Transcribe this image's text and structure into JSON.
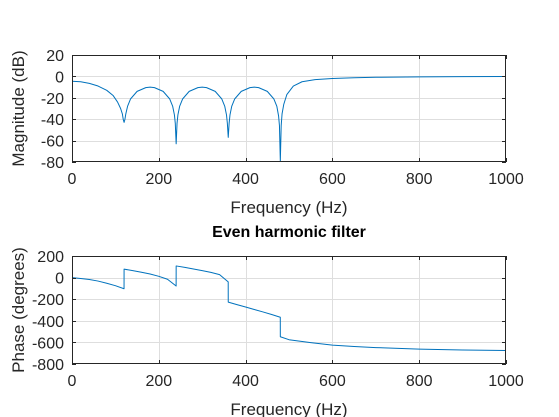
{
  "colors": {
    "series": "#0072bd",
    "axis": "#262626",
    "grid": "#dedede"
  },
  "chart_data": [
    {
      "type": "line",
      "title": "",
      "xlabel": "Frequency (Hz)",
      "ylabel": "Magnitude (dB)",
      "xlim": [
        0,
        1000
      ],
      "ylim": [
        -80,
        20
      ],
      "xticks": [
        0,
        200,
        400,
        600,
        800,
        1000
      ],
      "yticks": [
        -80,
        -60,
        -40,
        -20,
        0,
        20
      ],
      "xtick_labels": [
        "0",
        "200",
        "400",
        "600",
        "800",
        "1000"
      ],
      "ytick_labels": [
        "-80",
        "-60",
        "-40",
        "-20",
        "0",
        "20"
      ],
      "grid": true,
      "series": [
        {
          "x": [
            0,
            20,
            40,
            60,
            80,
            95,
            105,
            112,
            116,
            118,
            120,
            122,
            124,
            128,
            135,
            150,
            170,
            180,
            190,
            210,
            225,
            232,
            236,
            238,
            240,
            242,
            244,
            248,
            255,
            270,
            290,
            300,
            310,
            330,
            345,
            352,
            356,
            358,
            360,
            362,
            364,
            368,
            375,
            390,
            410,
            420,
            430,
            450,
            465,
            472,
            476,
            478,
            480,
            482,
            484,
            488,
            495,
            510,
            530,
            560,
            600,
            650,
            700,
            800,
            900,
            1000
          ],
          "y": [
            -4.5,
            -5,
            -6.5,
            -9,
            -13,
            -18,
            -24,
            -30,
            -35,
            -40,
            -43,
            -40,
            -35,
            -28,
            -21,
            -14,
            -10.5,
            -10,
            -10.5,
            -14,
            -21,
            -28,
            -36,
            -44,
            -63,
            -44,
            -36,
            -28,
            -21,
            -14,
            -10.5,
            -10,
            -10.5,
            -14,
            -21,
            -28,
            -36,
            -44,
            -57,
            -44,
            -36,
            -28,
            -21,
            -14,
            -10.5,
            -10,
            -10.5,
            -14,
            -21,
            -28,
            -37,
            -46,
            -79,
            -46,
            -35,
            -26,
            -17,
            -9,
            -5,
            -3,
            -2,
            -1.3,
            -0.8,
            -0.4,
            -0.2,
            -0.1
          ]
        }
      ]
    },
    {
      "type": "line",
      "title": "Even harmonic filter",
      "xlabel": "Frequency (Hz)",
      "ylabel": "Phase (degrees)",
      "xlim": [
        0,
        1000
      ],
      "ylim": [
        -800,
        200
      ],
      "xticks": [
        0,
        200,
        400,
        600,
        800,
        1000
      ],
      "yticks": [
        -800,
        -600,
        -400,
        -200,
        0,
        200
      ],
      "xtick_labels": [
        "0",
        "200",
        "400",
        "600",
        "800",
        "1000"
      ],
      "ytick_labels": [
        "-800",
        "-600",
        "-400",
        "-200",
        "0",
        "200"
      ],
      "grid": true,
      "series": [
        {
          "x": [
            0,
            20,
            40,
            60,
            80,
            100,
            119.9,
            120,
            140,
            160,
            180,
            200,
            220,
            239.9,
            240,
            260,
            280,
            300,
            320,
            340,
            359.9,
            360,
            380,
            400,
            420,
            440,
            460,
            479.9,
            480,
            500,
            550,
            600,
            650,
            700,
            800,
            900,
            1000
          ],
          "y": [
            0,
            -8,
            -18,
            -32,
            -52,
            -75,
            -103,
            78,
            65,
            50,
            33,
            12,
            -15,
            -78,
            108,
            95,
            80,
            65,
            48,
            28,
            -40,
            -227,
            -250,
            -272,
            -295,
            -318,
            -342,
            -367,
            -548,
            -575,
            -602,
            -625,
            -638,
            -648,
            -662,
            -670,
            -675
          ]
        }
      ]
    }
  ]
}
